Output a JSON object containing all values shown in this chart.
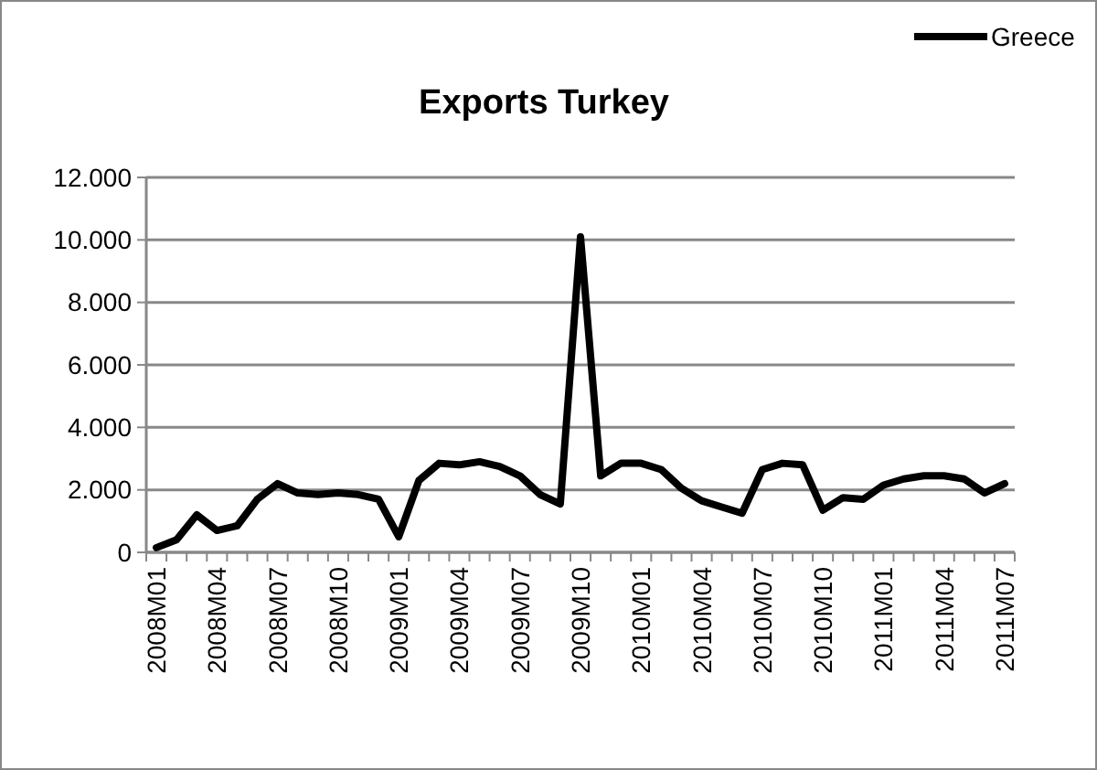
{
  "chart_data": {
    "type": "line",
    "title": "Exports Turkey",
    "legend": "top right",
    "grid": "y",
    "categories": [
      "2008M01",
      null,
      null,
      "2008M04",
      null,
      null,
      "2008M07",
      null,
      null,
      "2008M10",
      null,
      null,
      "2009M01",
      null,
      null,
      "2009M04",
      null,
      null,
      "2009M07",
      null,
      null,
      "2009M10",
      null,
      null,
      "2010M01",
      null,
      null,
      "2010M04",
      null,
      null,
      "2010M07",
      null,
      null,
      "2010M10",
      null,
      null,
      "2011M01",
      null,
      null,
      "2011M04",
      null,
      null,
      "2011M07"
    ],
    "series": [
      {
        "name": "Greece",
        "color": "#000000",
        "values": [
          150,
          400,
          1200,
          700,
          850,
          1700,
          2200,
          1900,
          1850,
          1900,
          1850,
          1700,
          500,
          2300,
          2850,
          2800,
          2900,
          2750,
          2450,
          1850,
          1550,
          10100,
          2450,
          2850,
          2850,
          2650,
          2050,
          1650,
          1450,
          1250,
          2650,
          2850,
          2800,
          1350,
          1750,
          1700,
          2150,
          2350,
          2450,
          2450,
          2350,
          1900,
          2200
        ]
      }
    ],
    "ylim": [
      0,
      12000
    ],
    "yticks": [
      0,
      {
        "value": 2000,
        "label": "2.000"
      },
      {
        "value": 4000,
        "label": "4.000"
      },
      {
        "value": 6000,
        "label": "6.000"
      },
      {
        "value": 8000,
        "label": "8.000"
      },
      {
        "value": 10000,
        "label": "10.000"
      },
      {
        "value": 12000,
        "label": "12.000"
      }
    ]
  }
}
